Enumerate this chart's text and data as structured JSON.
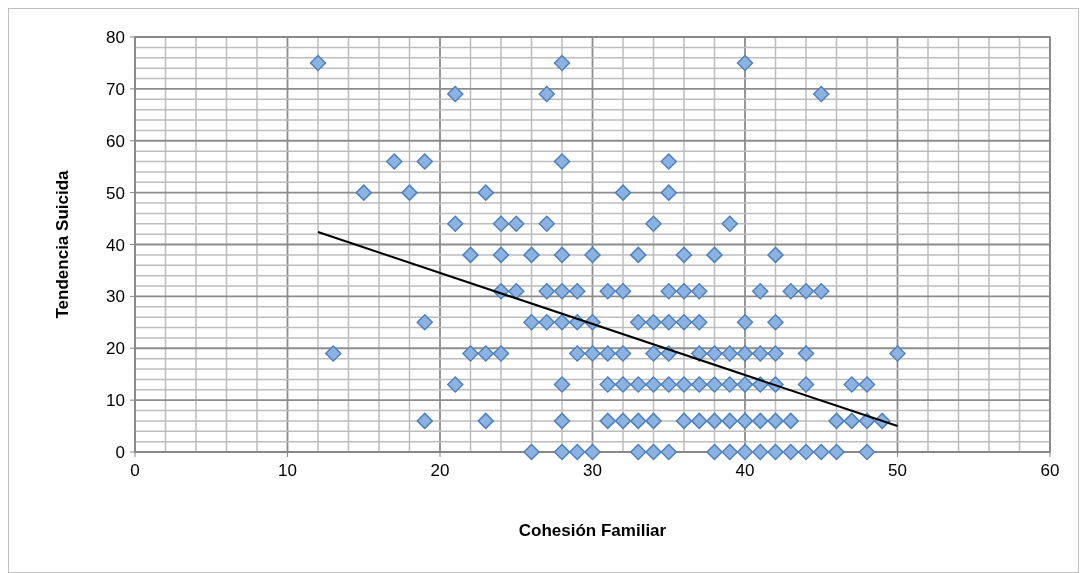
{
  "chart_data": {
    "type": "scatter",
    "xlabel": "Cohesión Familiar",
    "ylabel": "Tendencia Suicida",
    "xlim": [
      0,
      60
    ],
    "ylim": [
      0,
      80
    ],
    "xticks": [
      0,
      {
        "value": 2,
        "label": null
      },
      {
        "value": 4,
        "label": null
      },
      {
        "value": 6,
        "label": null
      },
      {
        "value": 8,
        "label": null
      },
      10,
      {
        "value": 12,
        "label": null
      },
      {
        "value": 14,
        "label": null
      },
      {
        "value": 16,
        "label": null
      },
      {
        "value": 18,
        "label": null
      },
      20,
      {
        "value": 22,
        "label": null
      },
      {
        "value": 24,
        "label": null
      },
      {
        "value": 26,
        "label": null
      },
      {
        "value": 28,
        "label": null
      },
      30,
      {
        "value": 32,
        "label": null
      },
      {
        "value": 34,
        "label": null
      },
      {
        "value": 36,
        "label": null
      },
      {
        "value": 38,
        "label": null
      },
      40,
      {
        "value": 42,
        "label": null
      },
      {
        "value": 44,
        "label": null
      },
      {
        "value": 46,
        "label": null
      },
      {
        "value": 48,
        "label": null
      },
      50,
      {
        "value": 52,
        "label": null
      },
      {
        "value": 54,
        "label": null
      },
      {
        "value": 56,
        "label": null
      },
      {
        "value": 58,
        "label": null
      },
      60
    ],
    "yticks": [
      0,
      {
        "value": 2,
        "label": null
      },
      {
        "value": 4,
        "label": null
      },
      {
        "value": 6,
        "label": null
      },
      {
        "value": 8,
        "label": null
      },
      10,
      {
        "value": 12,
        "label": null
      },
      {
        "value": 14,
        "label": null
      },
      {
        "value": 16,
        "label": null
      },
      {
        "value": 18,
        "label": null
      },
      20,
      {
        "value": 22,
        "label": null
      },
      {
        "value": 24,
        "label": null
      },
      {
        "value": 26,
        "label": null
      },
      {
        "value": 28,
        "label": null
      },
      30,
      {
        "value": 32,
        "label": null
      },
      {
        "value": 34,
        "label": null
      },
      {
        "value": 36,
        "label": null
      },
      {
        "value": 38,
        "label": null
      },
      40,
      {
        "value": 42,
        "label": null
      },
      {
        "value": 44,
        "label": null
      },
      {
        "value": 46,
        "label": null
      },
      {
        "value": 48,
        "label": null
      },
      50,
      {
        "value": 52,
        "label": null
      },
      {
        "value": 54,
        "label": null
      },
      {
        "value": 56,
        "label": null
      },
      {
        "value": 58,
        "label": null
      },
      60,
      {
        "value": 62,
        "label": null
      },
      {
        "value": 64,
        "label": null
      },
      {
        "value": 66,
        "label": null
      },
      {
        "value": 68,
        "label": null
      },
      70,
      {
        "value": 72,
        "label": null
      },
      {
        "value": 74,
        "label": null
      },
      {
        "value": 76,
        "label": null
      },
      {
        "value": 78,
        "label": null
      },
      80
    ],
    "grid": true,
    "marker": "diamond",
    "series": [
      {
        "color": "#8cb2e2",
        "x": [
          12,
          28,
          40,
          21,
          27,
          45,
          17,
          19,
          28,
          35,
          15,
          18,
          23,
          32,
          35,
          21,
          24,
          25,
          27,
          34,
          39,
          22,
          24,
          26,
          28,
          30,
          33,
          36,
          38,
          42,
          24,
          25,
          27,
          28,
          29,
          31,
          32,
          35,
          36,
          37,
          41,
          43,
          44,
          45,
          19,
          26,
          27,
          28,
          29,
          30,
          33,
          34,
          35,
          36,
          37,
          40,
          42,
          13,
          22,
          23,
          24,
          29,
          30,
          31,
          32,
          34,
          35,
          37,
          38,
          39,
          40,
          41,
          42,
          44,
          50,
          21,
          28,
          31,
          32,
          33,
          34,
          35,
          36,
          37,
          38,
          39,
          40,
          41,
          42,
          44,
          47,
          48,
          19,
          23,
          28,
          31,
          32,
          33,
          34,
          36,
          37,
          38,
          39,
          40,
          41,
          42,
          43,
          46,
          47,
          48,
          49,
          26,
          28,
          29,
          30,
          33,
          34,
          35,
          38,
          39,
          40,
          41,
          42,
          43,
          44,
          45,
          46,
          48
        ],
        "values": [
          75,
          75,
          75,
          69,
          69,
          69,
          56,
          56,
          56,
          56,
          50,
          50,
          50,
          50,
          50,
          44,
          44,
          44,
          44,
          44,
          44,
          38,
          38,
          38,
          38,
          38,
          38,
          38,
          38,
          38,
          31,
          31,
          31,
          31,
          31,
          31,
          31,
          31,
          31,
          31,
          31,
          31,
          31,
          31,
          25,
          25,
          25,
          25,
          25,
          25,
          25,
          25,
          25,
          25,
          25,
          25,
          25,
          19,
          19,
          19,
          19,
          19,
          19,
          19,
          19,
          19,
          19,
          19,
          19,
          19,
          19,
          19,
          19,
          19,
          19,
          13,
          13,
          13,
          13,
          13,
          13,
          13,
          13,
          13,
          13,
          13,
          13,
          13,
          13,
          13,
          13,
          13,
          6,
          6,
          6,
          6,
          6,
          6,
          6,
          6,
          6,
          6,
          6,
          6,
          6,
          6,
          6,
          6,
          6,
          6,
          6,
          0,
          0,
          0,
          0,
          0,
          0,
          0,
          0,
          0,
          0,
          0,
          0,
          0,
          0,
          0,
          0,
          0
        ]
      },
      {
        "type": "line",
        "color": "#000000",
        "x": [
          12,
          50
        ],
        "values": [
          42.4,
          5.0
        ],
        "marker": "none",
        "line_style": "solid"
      }
    ]
  }
}
